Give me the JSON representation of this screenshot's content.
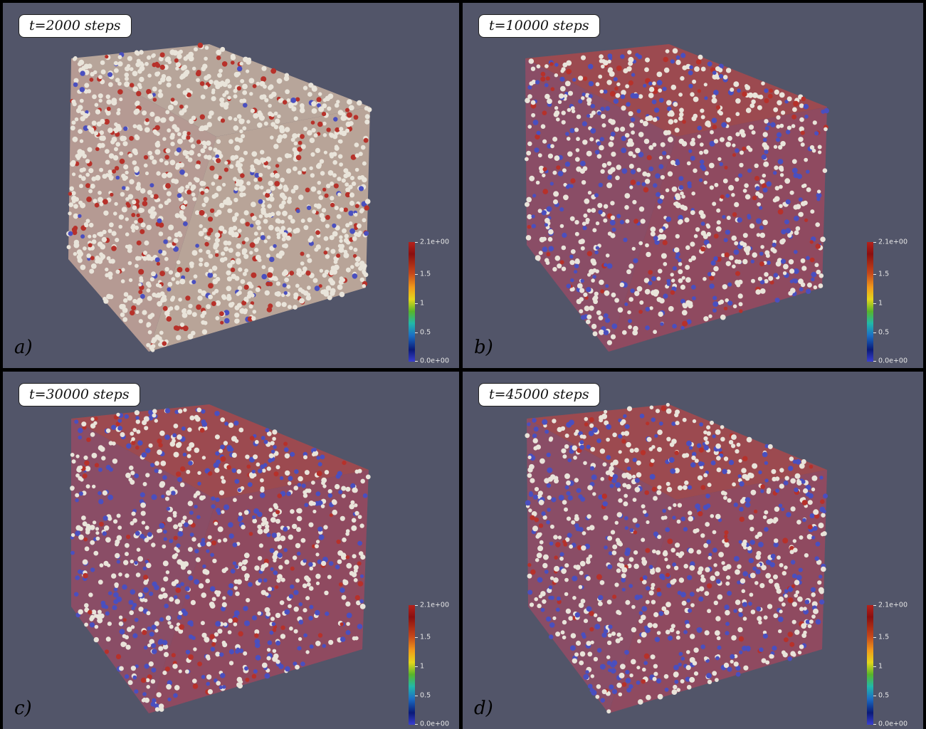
{
  "panels": [
    {
      "id": "a",
      "time_label": "t=2000 steps",
      "letter": "a)"
    },
    {
      "id": "b",
      "time_label": "t=10000 steps",
      "letter": "b)"
    },
    {
      "id": "c",
      "time_label": "t=30000 steps",
      "letter": "c)"
    },
    {
      "id": "d",
      "time_label": "t=45000 steps",
      "letter": "d)"
    }
  ],
  "colorbar": {
    "labels": [
      "2.1e+00",
      "1.5",
      "1",
      "0.5",
      "0.0e+00"
    ]
  },
  "colors": {
    "background": "#525569",
    "sphere": "#e8e3d8",
    "red_domain": "#a8231e",
    "blue_domain": "#3a3fb0",
    "separator": "#000000"
  }
}
